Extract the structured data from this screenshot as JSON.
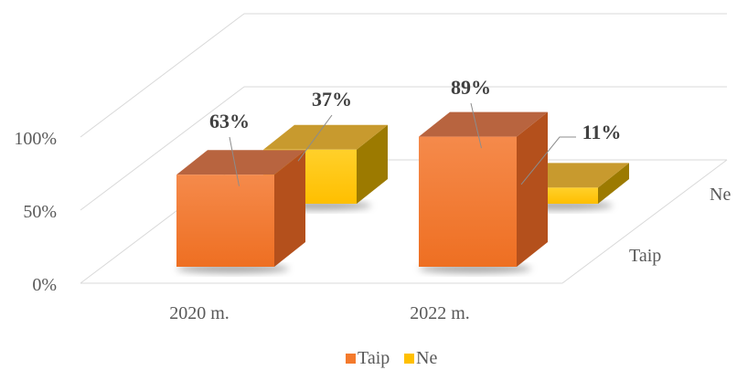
{
  "chart_data": {
    "type": "bar",
    "variant": "3d-column",
    "categories": [
      "2020 m.",
      "2022 m."
    ],
    "series": [
      {
        "name": "Taip",
        "values": [
          63,
          89
        ],
        "labels": [
          "63%",
          "89%"
        ],
        "color": "#f47a2c",
        "top_color": "#b8643f",
        "side_color": "#b4501c"
      },
      {
        "name": "Ne",
        "values": [
          37,
          11
        ],
        "labels": [
          "37%",
          "11%"
        ],
        "color": "#ffc000",
        "top_color": "#c89a2e",
        "side_color": "#9c7a00"
      }
    ],
    "ylim": [
      0,
      100
    ],
    "y_ticks": [
      "0%",
      "50%",
      "100%"
    ],
    "depth_labels": [
      "Taip",
      "Ne"
    ],
    "grid": true,
    "legend": "bottom",
    "legend_entries": [
      "Taip",
      "Ne"
    ]
  }
}
